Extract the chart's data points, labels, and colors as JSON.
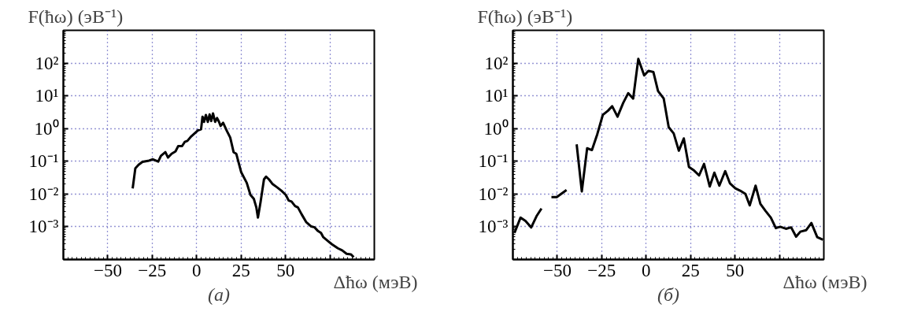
{
  "chart_data": [
    {
      "type": "line",
      "ylabel": "F(ħω)   (эВ⁻¹)",
      "xlabel": "Δħω (мэВ)",
      "annotations": [
        "(а)"
      ],
      "log": true,
      "grid": true,
      "xlim": [
        -75,
        100
      ],
      "ylim": [
        0.0001,
        1000
      ],
      "xticks": [
        {
          "value": -50,
          "label": "−50"
        },
        {
          "value": -25,
          "label": "−25"
        },
        0,
        25,
        50,
        {
          "value": 75,
          "label": null
        }
      ],
      "yticks": [
        {
          "value": 0.001,
          "label": "10⁻³"
        },
        {
          "value": 0.01,
          "label": "10⁻²"
        },
        {
          "value": 0.1,
          "label": "10⁻¹"
        },
        {
          "value": 1,
          "label": "10⁰"
        },
        {
          "value": 10,
          "label": "10¹"
        },
        {
          "value": 100,
          "label": "10²"
        }
      ],
      "series": [
        {
          "color": "#000000",
          "x": [
            -36.0,
            -34.5,
            -32.7,
            -30.5,
            -26.8,
            -24.6,
            -21.6,
            -20.1,
            -17.6,
            -16.1,
            -14.1,
            -11.9,
            -10.4,
            -8.2,
            -6.7,
            -5.2,
            -3.0,
            0.7,
            2.5,
            3.3,
            4.2,
            5.2,
            6.3,
            7.3,
            8.2,
            9.2,
            10.4,
            11.5,
            12.6,
            13.5,
            14.9,
            17.1,
            18.9,
            20.8,
            22.3,
            25.1,
            28.2,
            30.3,
            32.2,
            33.6,
            34.5,
            36.0,
            37.9,
            39.1,
            40.7,
            42.8,
            45.3,
            47.7,
            50.2,
            51.8,
            53.4,
            55.4,
            57.0,
            59.1,
            61.6,
            64.5,
            66.4,
            68.1,
            70.0,
            71.3,
            73.8,
            76.2,
            79.5,
            81.9,
            84.4,
            86.8,
            88.4
          ],
          "values": [
            0.0148,
            0.061,
            0.078,
            0.096,
            0.105,
            0.115,
            0.098,
            0.147,
            0.19,
            0.13,
            0.17,
            0.2,
            0.29,
            0.29,
            0.39,
            0.42,
            0.58,
            0.88,
            0.95,
            2.3,
            1.6,
            2.6,
            1.6,
            2.7,
            1.7,
            2.9,
            1.6,
            2.1,
            1.6,
            1.2,
            1.5,
            0.83,
            0.53,
            0.19,
            0.17,
            0.046,
            0.022,
            0.0094,
            0.0071,
            0.0039,
            0.0019,
            0.0058,
            0.028,
            0.034,
            0.028,
            0.02,
            0.016,
            0.0126,
            0.0094,
            0.0063,
            0.0059,
            0.0043,
            0.0039,
            0.0024,
            0.0014,
            0.00102,
            0.00096,
            0.00076,
            0.00065,
            0.00048,
            0.00037,
            0.00029,
            0.00022,
            0.00019,
            0.00015,
            0.000144,
            0.000118
          ]
        }
      ]
    },
    {
      "type": "line",
      "ylabel": "F(ħω)   (эВ⁻¹)",
      "xlabel": "Δħω (мэВ)",
      "annotations": [
        "(б)"
      ],
      "log": true,
      "grid": true,
      "xlim": [
        -75,
        100
      ],
      "ylim": [
        0.0001,
        1000
      ],
      "xticks": [
        {
          "value": -50,
          "label": "−50"
        },
        {
          "value": -25,
          "label": "−25"
        },
        0,
        25,
        50,
        {
          "value": 75,
          "label": null
        }
      ],
      "yticks": [
        {
          "value": 0.001,
          "label": "10⁻³"
        },
        {
          "value": 0.01,
          "label": "10⁻²"
        },
        {
          "value": 0.1,
          "label": "10⁻¹"
        },
        {
          "value": 1,
          "label": "10⁰"
        },
        {
          "value": 10,
          "label": "10¹"
        },
        {
          "value": 100,
          "label": "10²"
        }
      ],
      "series": [
        {
          "color": "#000000",
          "x": [
            -74.1,
            -70.7,
            -67.9,
            -64.7,
            -61.7,
            -58.9,
            -56.0,
            -53.3,
            -50.3,
            -44.8,
            -42.7,
            -40.6,
            -39.1,
            -36.2,
            -33.2,
            -30.5,
            -27.5,
            -24.4,
            -21.5,
            -19.1,
            -16.1,
            -12.9,
            -10.1,
            -7.3,
            -4.4,
            -1.1,
            1.3,
            4.1,
            6.7,
            9.9,
            12.7,
            15.5,
            18.4,
            21.2,
            24.1,
            27.0,
            29.8,
            32.6,
            35.8,
            38.4,
            41.2,
            44.5,
            47.2,
            50.2,
            52.9,
            55.9,
            58.3,
            61.6,
            64.3,
            67.3,
            70.2,
            73.0,
            75.4,
            78.7,
            81.6,
            84.4,
            86.8,
            90.1,
            93.0,
            96.3,
            99.5
          ],
          "values": [
            0.00065,
            0.0019,
            0.0015,
            0.00095,
            0.0021,
            0.0036,
            null,
            0.0081,
            0.0081,
            0.0132,
            null,
            null,
            0.33,
            0.012,
            0.25,
            0.22,
            0.67,
            2.6,
            3.5,
            4.8,
            2.3,
            6.1,
            12,
            8.2,
            135,
            42,
            58,
            53,
            14,
            8.2,
            1.1,
            0.71,
            0.21,
            0.5,
            0.067,
            0.052,
            0.037,
            0.083,
            0.017,
            0.045,
            0.018,
            0.05,
            0.021,
            0.015,
            0.0127,
            0.01,
            0.0045,
            0.018,
            0.005,
            0.003,
            0.0019,
            0.00091,
            0.001,
            0.00087,
            0.00096,
            0.0005,
            0.00071,
            0.00079,
            0.0013,
            0.00048,
            0.0004
          ]
        }
      ]
    }
  ]
}
